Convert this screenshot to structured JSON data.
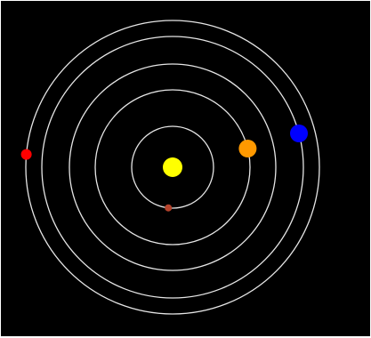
{
  "scene": {
    "background_color": "#000000",
    "orbit_color": "#e6e6e6",
    "sun": {
      "name": "sun",
      "color": "#ffff00"
    },
    "planets": [
      {
        "name": "planet-small-brown",
        "color": "#b5432c",
        "orbit_index": 0,
        "phase_deg": 96
      },
      {
        "name": "planet-orange",
        "color": "#ff9900",
        "orbit_index": 1,
        "phase_deg": -14
      },
      {
        "name": "planet-blue",
        "color": "#0000ff",
        "orbit_index": 3,
        "phase_deg": -15
      },
      {
        "name": "planet-red",
        "color": "#ff0000",
        "orbit_index": 4,
        "phase_deg": 185
      }
    ],
    "orbit_count": 5
  }
}
